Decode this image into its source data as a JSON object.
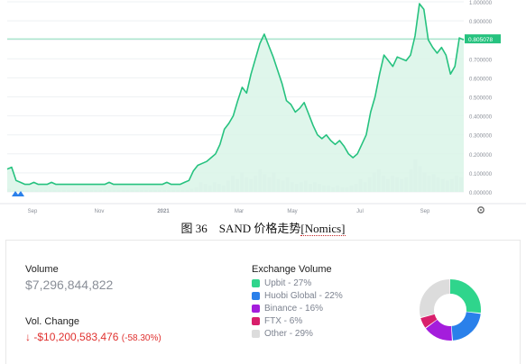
{
  "chart_data": [
    {
      "type": "area",
      "x_ticks": [
        "Sep",
        "Nov",
        "2021",
        "Mar",
        "May",
        "Jul",
        "Sep"
      ],
      "y_ticks": [
        "0.000000",
        "0.100000",
        "0.200000",
        "0.300000",
        "0.400000",
        "0.500000",
        "0.600000",
        "0.700000",
        "0.800000",
        "0.900000",
        "1.000000"
      ],
      "ylim": [
        0,
        1.0
      ],
      "current_price_label": "0.805078",
      "current_price": 0.805078,
      "grid": true,
      "series": [
        {
          "values": [
            0.12,
            0.13,
            0.06,
            0.05,
            0.04,
            0.04,
            0.05,
            0.04,
            0.04,
            0.04,
            0.05,
            0.04,
            0.04,
            0.04,
            0.04,
            0.04,
            0.04,
            0.04,
            0.04,
            0.04,
            0.04,
            0.04,
            0.04,
            0.05,
            0.04,
            0.04,
            0.04,
            0.04,
            0.04,
            0.04,
            0.04,
            0.04,
            0.04,
            0.04,
            0.04,
            0.04,
            0.05,
            0.04,
            0.04,
            0.04,
            0.05,
            0.06,
            0.11,
            0.14,
            0.15,
            0.16,
            0.18,
            0.2,
            0.25,
            0.33,
            0.36,
            0.4,
            0.48,
            0.55,
            0.52,
            0.62,
            0.7,
            0.78,
            0.83,
            0.77,
            0.71,
            0.64,
            0.57,
            0.48,
            0.46,
            0.42,
            0.44,
            0.47,
            0.41,
            0.35,
            0.3,
            0.28,
            0.3,
            0.27,
            0.25,
            0.27,
            0.24,
            0.2,
            0.18,
            0.2,
            0.25,
            0.3,
            0.42,
            0.5,
            0.62,
            0.72,
            0.69,
            0.66,
            0.71,
            0.7,
            0.69,
            0.72,
            0.82,
            0.99,
            0.96,
            0.8,
            0.76,
            0.73,
            0.76,
            0.72,
            0.62,
            0.66,
            0.81,
            0.8
          ]
        }
      ]
    },
    {
      "type": "pie",
      "title": "Exchange Volume",
      "labels": [
        "Upbit",
        "Huobi Global",
        "Binance",
        "FTX",
        "Other"
      ],
      "values": [
        27,
        22,
        16,
        6,
        29
      ]
    }
  ],
  "colors": {
    "line": "#26c27f",
    "fill": "#d9f4e8",
    "current_line": "#26c27f",
    "upbit": "#2fd58c",
    "huobi": "#2a80ea",
    "binance": "#a41ddc",
    "ftx": "#d81f6b",
    "other": "#dcdcdc",
    "negative": "#e0312f"
  },
  "icons": {
    "logo": "nomics-logo-icon",
    "settings": "gear-icon",
    "down": "arrow-down-icon"
  },
  "caption": {
    "prefix": "图 36　SAND 价格走势",
    "link": "[Nomics]"
  },
  "stats": {
    "volume_label": "Volume",
    "volume_value": "$7,296,844,822",
    "vol_change_label": "Vol. Change",
    "vol_change_value": "-$10,200,583,476",
    "vol_change_pct": "(-58.30%)"
  },
  "exchange_volume": {
    "title": "Exchange Volume",
    "items": [
      {
        "label": "Upbit - 27%"
      },
      {
        "label": "Huobi Global - 22%"
      },
      {
        "label": "Binance - 16%"
      },
      {
        "label": "FTX - 6%"
      },
      {
        "label": "Other - 29%"
      }
    ]
  }
}
